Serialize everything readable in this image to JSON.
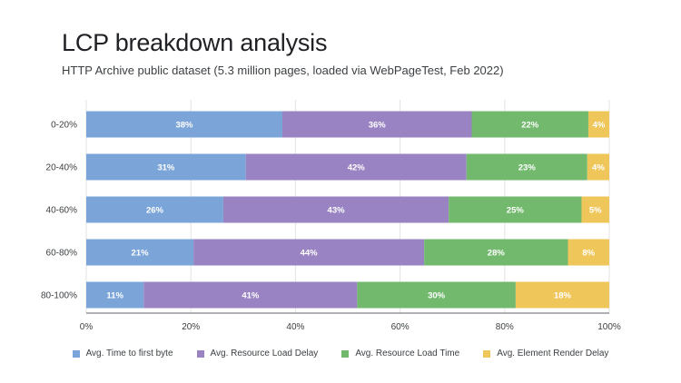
{
  "title": "LCP breakdown analysis",
  "subtitle": "HTTP Archive public dataset (5.3 million pages, loaded via WebPageTest, Feb 2022)",
  "chart_data": {
    "type": "bar",
    "orientation": "horizontal",
    "stacked": true,
    "categories": [
      "0-20%",
      "20-40%",
      "40-60%",
      "60-80%",
      "80-100%"
    ],
    "series": [
      {
        "name": "Avg. Time to first byte",
        "color": "#7ba4d8",
        "values": [
          37.5,
          30.5,
          26.2,
          20.5,
          11.0
        ],
        "labels": [
          "38%",
          "31%",
          "26%",
          "21%",
          "11%"
        ]
      },
      {
        "name": "Avg. Resource Load Delay",
        "color": "#9983c2",
        "values": [
          36.2,
          42.2,
          43.1,
          44.1,
          40.8
        ],
        "labels": [
          "36%",
          "42%",
          "43%",
          "44%",
          "41%"
        ]
      },
      {
        "name": "Avg. Resource Load Time",
        "color": "#72b96d",
        "values": [
          22.3,
          23.1,
          25.4,
          27.5,
          30.3
        ],
        "labels": [
          "22%",
          "23%",
          "25%",
          "28%",
          "30%"
        ]
      },
      {
        "name": "Avg. Element Render Delay",
        "color": "#efc65a",
        "values": [
          4.0,
          4.2,
          5.3,
          7.9,
          17.9
        ],
        "labels": [
          "4%",
          "4%",
          "5%",
          "8%",
          "18%"
        ]
      }
    ],
    "xlim": [
      0,
      100
    ],
    "xticks": [
      0,
      20,
      40,
      60,
      80,
      100
    ],
    "xtick_labels": [
      "0%",
      "20%",
      "40%",
      "60%",
      "80%",
      "100%"
    ],
    "grid": true,
    "legend_position": "bottom"
  }
}
